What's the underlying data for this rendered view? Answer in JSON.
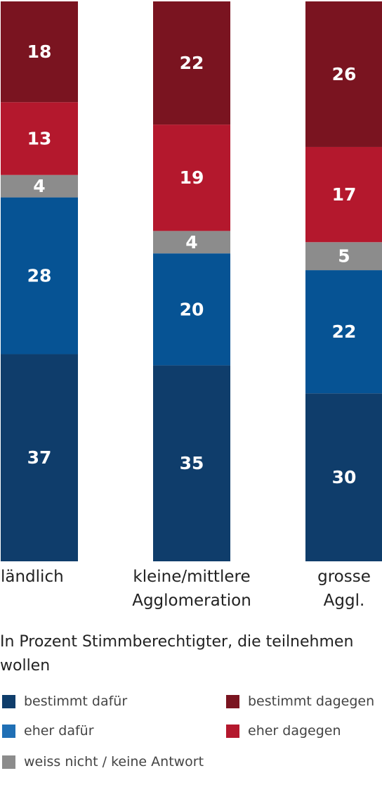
{
  "chart_data": {
    "type": "bar",
    "stacked": true,
    "categories": [
      [
        "ländlich"
      ],
      [
        "kleine/mittlere",
        "Agglomeration"
      ],
      [
        "grosse",
        "Aggl."
      ]
    ],
    "ylim": [
      0,
      100
    ],
    "series": [
      {
        "name": "bestimmt dafür",
        "color": "#0f3d6b",
        "values": [
          37,
          35,
          30
        ]
      },
      {
        "name": "eher dafür",
        "color": "#065394",
        "values": [
          28,
          20,
          22
        ]
      },
      {
        "name": "weiss nicht / keine Antwort",
        "color": "#8c8c8c",
        "values": [
          4,
          4,
          5
        ]
      },
      {
        "name": "eher dagegen",
        "color": "#b4182d",
        "values": [
          13,
          19,
          17
        ]
      },
      {
        "name": "bestimmt dagegen",
        "color": "#7a1420",
        "values": [
          18,
          22,
          26
        ]
      }
    ],
    "note": "In Prozent Stimmberechtigter, die teilnehmen wollen"
  },
  "legend": {
    "items": [
      {
        "label": "bestimmt dafür",
        "color": "#0f3d6b"
      },
      {
        "label": "bestimmt dagegen",
        "color": "#7a1420"
      },
      {
        "label": "eher dafür",
        "color": "#1f6fb5"
      },
      {
        "label": "eher dagegen",
        "color": "#b4182d"
      },
      {
        "label": "weiss nicht / keine Antwort",
        "color": "#8c8c8c"
      }
    ]
  }
}
